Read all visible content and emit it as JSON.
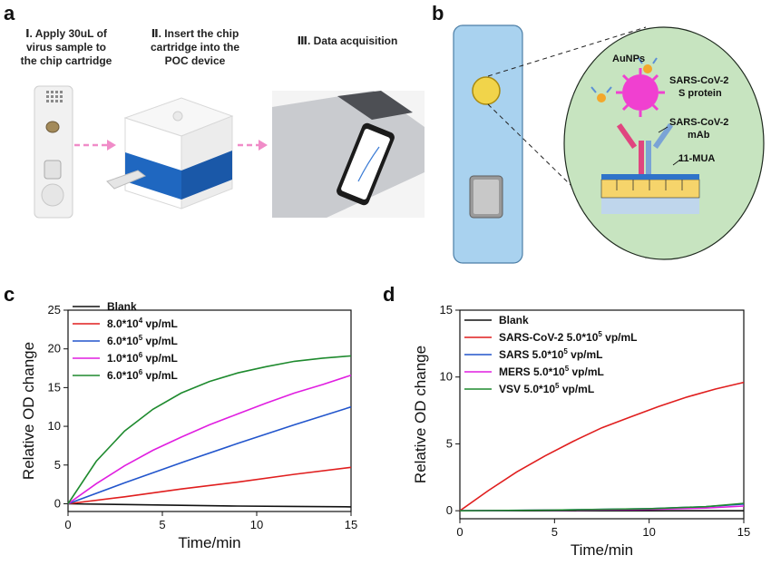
{
  "panels": {
    "a": {
      "letter": "a",
      "steps": [
        {
          "line1": "Ⅰ.  Apply 30uL of",
          "line2": "virus sample to",
          "line3": "the chip cartridge"
        },
        {
          "line1": "Ⅱ. Insert the chip",
          "line2": "cartridge into the",
          "line3": "POC device"
        },
        {
          "line1": "Ⅲ. Data acquisition",
          "line2": "",
          "line3": ""
        }
      ]
    },
    "b": {
      "letter": "b",
      "labels": {
        "aunps": "AuNPs",
        "protein_line1": "SARS-CoV-2",
        "protein_line2": "S protein",
        "mab_line1": "SARS-CoV-2",
        "mab_line2": "mAb",
        "mua": "11-MUA"
      }
    },
    "c": {
      "letter": "c"
    },
    "d": {
      "letter": "d"
    }
  },
  "chart_data": [
    {
      "panel": "c",
      "type": "line",
      "xlabel": "Time/min",
      "ylabel": "Relative OD change",
      "xlim": [
        0,
        15
      ],
      "ylim": [
        -1,
        25
      ],
      "xticks": [
        0,
        5,
        10,
        15
      ],
      "yticks": [
        0,
        5,
        10,
        15,
        20,
        25
      ],
      "legend": "top-left",
      "series": [
        {
          "name": "Blank",
          "color": "#111111",
          "x": [
            0,
            3,
            6,
            9,
            12,
            15
          ],
          "y": [
            0,
            -0.1,
            -0.2,
            -0.3,
            -0.35,
            -0.4
          ]
        },
        {
          "name": "8.0*10",
          "sup": "4",
          "suffix": " vp/mL",
          "color": "#e01e1e",
          "x": [
            0,
            3,
            6,
            9,
            12,
            15
          ],
          "y": [
            0,
            0.9,
            1.9,
            2.8,
            3.8,
            4.7
          ]
        },
        {
          "name": "6.0*10",
          "sup": "5",
          "suffix": " vp/mL",
          "color": "#2255cc",
          "x": [
            0,
            3,
            6,
            9,
            12,
            15
          ],
          "y": [
            0,
            2.7,
            5.3,
            7.8,
            10.2,
            12.5
          ]
        },
        {
          "name": "1.0*10",
          "sup": "6",
          "suffix": " vp/mL",
          "color": "#e01ee0",
          "x": [
            0,
            1.5,
            3,
            4.5,
            6,
            7.5,
            9,
            10.5,
            12,
            13.5,
            15
          ],
          "y": [
            0,
            2.6,
            4.9,
            6.9,
            8.6,
            10.2,
            11.6,
            13.0,
            14.3,
            15.4,
            16.6
          ]
        },
        {
          "name": "6.0*10",
          "sup": "6",
          "suffix": " vp/mL",
          "color": "#1e8a2e",
          "x": [
            0,
            1.5,
            3,
            4.5,
            6,
            7.5,
            9,
            10.5,
            12,
            13.5,
            15
          ],
          "y": [
            0,
            5.5,
            9.4,
            12.2,
            14.3,
            15.8,
            16.9,
            17.7,
            18.4,
            18.8,
            19.1
          ]
        }
      ]
    },
    {
      "panel": "d",
      "type": "line",
      "xlabel": "Time/min",
      "ylabel": "Relative OD change",
      "xlim": [
        0,
        15
      ],
      "ylim": [
        -0.6,
        15
      ],
      "xticks": [
        0,
        5,
        10,
        15
      ],
      "yticks": [
        0,
        5,
        10,
        15
      ],
      "legend": "top-left",
      "series": [
        {
          "name": "Blank",
          "color": "#111111",
          "x": [
            0,
            5,
            10,
            15
          ],
          "y": [
            0,
            0,
            0,
            0
          ]
        },
        {
          "name": "SARS-CoV-2 5.0*10",
          "sup": "5",
          "suffix": " vp/mL",
          "color": "#e01e1e",
          "x": [
            0,
            1.5,
            3,
            4.5,
            6,
            7.5,
            9,
            10.5,
            12,
            13.5,
            15
          ],
          "y": [
            0,
            1.5,
            2.9,
            4.1,
            5.2,
            6.2,
            7.0,
            7.8,
            8.5,
            9.1,
            9.6
          ]
        },
        {
          "name": "SARS 5.0*10",
          "sup": "5",
          "suffix": " vp/mL",
          "color": "#2255cc",
          "x": [
            0,
            5,
            10,
            13,
            15
          ],
          "y": [
            0,
            0.05,
            0.15,
            0.3,
            0.5
          ]
        },
        {
          "name": "MERS 5.0*10",
          "sup": "5",
          "suffix": " vp/mL",
          "color": "#e01ee0",
          "x": [
            0,
            5,
            10,
            13,
            15
          ],
          "y": [
            0,
            0.04,
            0.1,
            0.2,
            0.35
          ]
        },
        {
          "name": "VSV 5.0*10",
          "sup": "5",
          "suffix": " vp/mL",
          "color": "#1e8a2e",
          "x": [
            0,
            5,
            10,
            13,
            15
          ],
          "y": [
            0,
            0.05,
            0.15,
            0.3,
            0.55
          ]
        }
      ]
    }
  ]
}
